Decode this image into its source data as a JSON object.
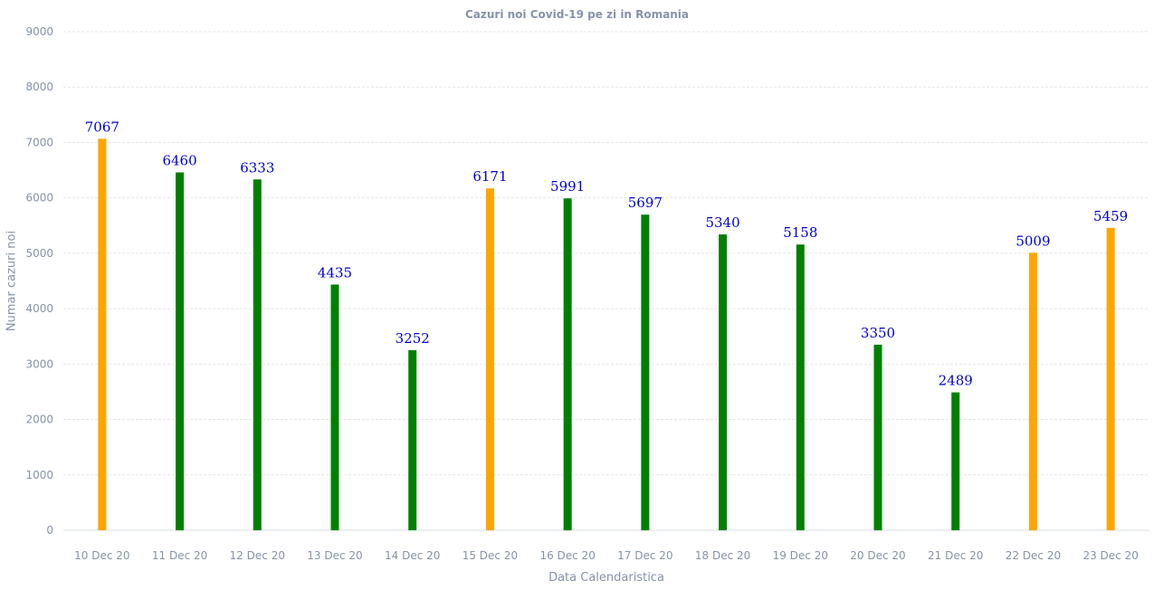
{
  "chart_data": {
    "type": "bar",
    "title": "Cazuri noi Covid-19 pe zi in Romania",
    "xlabel": "Data Calendaristica",
    "ylabel": "Numar cazuri noi",
    "ylim": [
      0,
      9000
    ],
    "yticks": [
      0,
      1000,
      2000,
      3000,
      4000,
      5000,
      6000,
      7000,
      8000,
      9000
    ],
    "grid": true,
    "categories": [
      "10 Dec 20",
      "11 Dec 20",
      "12 Dec 20",
      "13 Dec 20",
      "14 Dec 20",
      "15 Dec 20",
      "16 Dec 20",
      "17 Dec 20",
      "18 Dec 20",
      "19 Dec 20",
      "20 Dec 20",
      "21 Dec 20",
      "22 Dec 20",
      "23 Dec 20"
    ],
    "values": [
      7067,
      6460,
      6333,
      4435,
      3252,
      6171,
      5991,
      5697,
      5340,
      5158,
      3350,
      2489,
      5009,
      5459
    ],
    "bar_colors": [
      "#ffa500",
      "#008000",
      "#008000",
      "#008000",
      "#008000",
      "#ffa500",
      "#008000",
      "#008000",
      "#008000",
      "#008000",
      "#008000",
      "#008000",
      "#ffa500",
      "#ffa500"
    ],
    "colors": {
      "axis_text": "#8593a8",
      "grid": "#e3e7ec",
      "data_label": "#0000cc"
    }
  }
}
